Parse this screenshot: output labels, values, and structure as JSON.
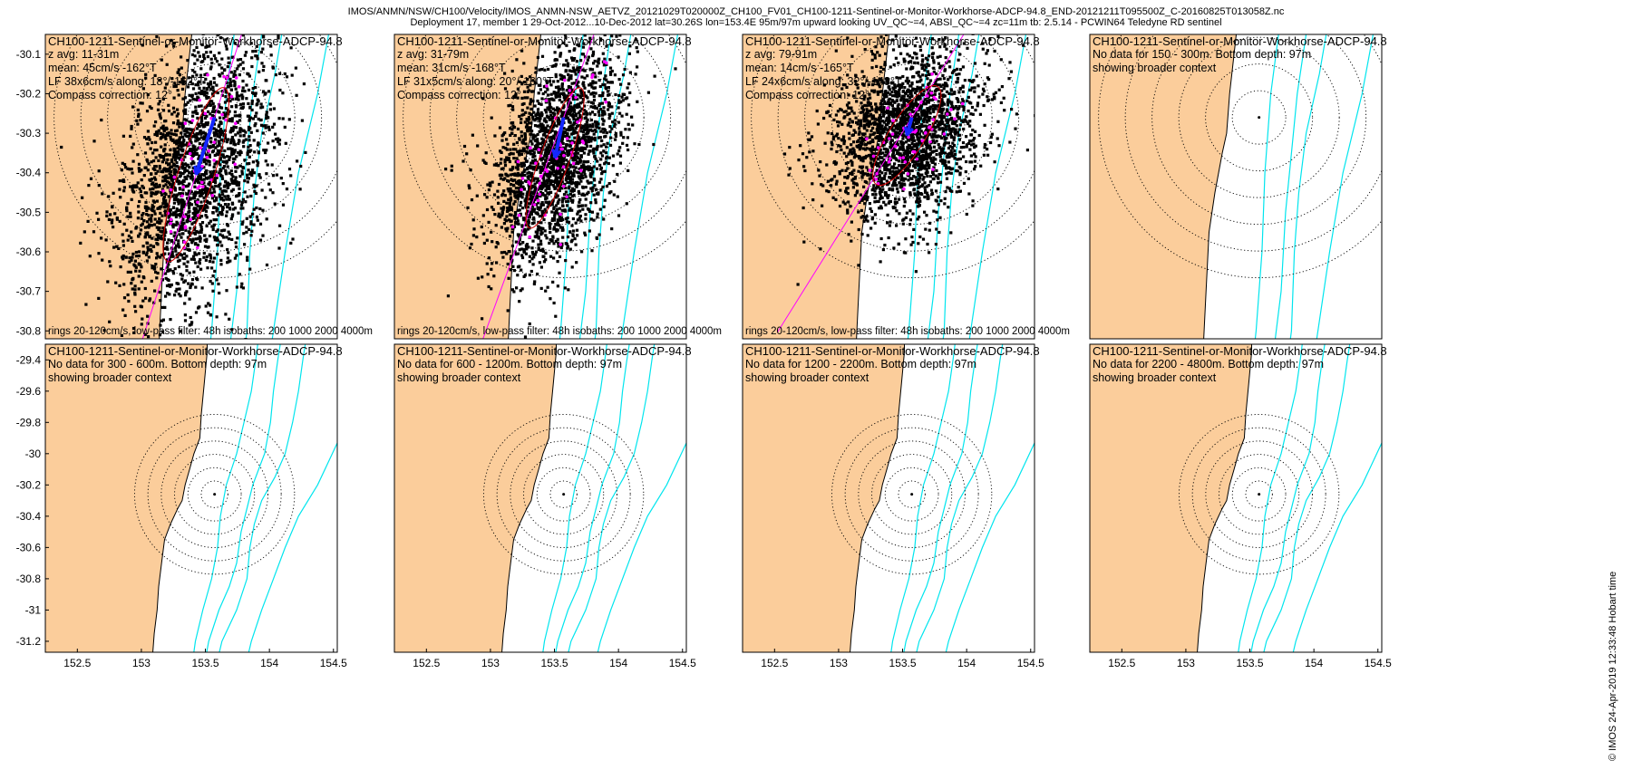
{
  "header": {
    "line1": "IMOS/ANMN/NSW/CH100/Velocity/IMOS_ANMN-NSW_AETVZ_20121029T020000Z_CH100_FV01_CH100-1211-Sentinel-or-Monitor-Workhorse-ADCP-94.8_END-20121211T095500Z_C-20160825T013058Z.nc",
    "line2": "Deployment 17, member 1 29-Oct-2012...10-Dec-2012 lat=30.26S lon=153.4E 95m/97m upward looking UV_QC~=4, ABSI_QC~=4 zc=11m tb: 2.5.14 - PCWIN64 Teledyne RD sentinel"
  },
  "stamp": "© IMOS 24-Apr-2019 12:33:48 Hobart time",
  "colors": {
    "land": "#fbcd9b",
    "isobath": "#00e5ee",
    "points": "#000000",
    "lfpoints": "#ff00ff",
    "arrow": "#1428ff",
    "ellipse": "#d00000",
    "axisline": "#ff00ff"
  },
  "chart_data": [
    {
      "type": "scatter",
      "panel": "top-1",
      "title": "CH100-1211-Sentinel-or-Monitor-Workhorse-ADCP-94.8",
      "lines": [
        "z avg: 11-31m",
        "mean: 45cm/s -162°T",
        "LF 38x6cm/s along: 18°/-162°T",
        "Compass correction: 12°"
      ],
      "footer": "rings 20-120cm/s, low-pass filter: 48h isobaths: 200 1000 2000 4000m",
      "yticks": [
        "-30.1",
        "-30.2",
        "-30.3",
        "-30.4",
        "-30.5",
        "-30.6",
        "-30.7",
        "-30.8"
      ],
      "ylim": [
        -30.82,
        -30.05
      ],
      "rings_cms": [
        20,
        40,
        60,
        80,
        100,
        120
      ],
      "mean_speed_cms": 45,
      "mean_dir_degT": -162,
      "lf_axes_cms": [
        38,
        6
      ],
      "along_deg": 18
    },
    {
      "type": "scatter",
      "panel": "top-2",
      "title": "CH100-1211-Sentinel-or-Monitor-Workhorse-ADCP-94.8",
      "lines": [
        "z avg: 31-79m",
        "mean: 31cm/s -168°T",
        "LF 31x5cm/s along: 20°/-160°T",
        "Compass correction: 12°"
      ],
      "footer": "rings 20-120cm/s, low-pass filter: 48h isobaths: 200 1000 2000 4000m",
      "rings_cms": [
        20,
        40,
        60,
        80,
        100,
        120
      ],
      "mean_speed_cms": 31,
      "mean_dir_degT": -168,
      "lf_axes_cms": [
        31,
        5
      ],
      "along_deg": 20
    },
    {
      "type": "scatter",
      "panel": "top-3",
      "title": "CH100-1211-Sentinel-or-Monitor-Workhorse-ADCP-94.8",
      "lines": [
        "z avg: 79-91m",
        "mean: 14cm/s -165°T",
        "LF 24x6cm/s along: 32°/-148°T",
        "Compass correction: 12°"
      ],
      "footer": "rings 20-120cm/s, low-pass filter: 48h isobaths: 200 1000 2000 4000m",
      "rings_cms": [
        20,
        40,
        60,
        80,
        100,
        120
      ],
      "mean_speed_cms": 14,
      "mean_dir_degT": -165,
      "lf_axes_cms": [
        24,
        6
      ],
      "along_deg": 32
    },
    {
      "type": "scatter",
      "panel": "top-4",
      "title": "CH100-1211-Sentinel-or-Monitor-Workhorse-ADCP-94.8",
      "lines": [
        "No data for 150 - 300m. Bottom depth: 97m",
        "showing broader context"
      ]
    },
    {
      "type": "scatter",
      "panel": "bottom-1",
      "title": "CH100-1211-Sentinel-or-Monitor-Workhorse-ADCP-94.8",
      "lines": [
        "No data for 300 - 600m. Bottom depth: 97m",
        "showing broader context"
      ],
      "yticks": [
        "-29.4",
        "-29.6",
        "-29.8",
        "-30",
        "-30.2",
        "-30.4",
        "-30.6",
        "-30.8",
        "-31",
        "-31.2"
      ],
      "ylim": [
        -31.27,
        -29.3
      ],
      "xticks": [
        "152.5",
        "153",
        "153.5",
        "154",
        "154.5"
      ],
      "xlim": [
        152.25,
        154.53
      ]
    },
    {
      "type": "scatter",
      "panel": "bottom-2",
      "title": "CH100-1211-Sentinel-or-Monitor-Workhorse-ADCP-94.8",
      "lines": [
        "No data for 600 - 1200m. Bottom depth: 97m",
        "showing broader context"
      ]
    },
    {
      "type": "scatter",
      "panel": "bottom-3",
      "title": "CH100-1211-Sentinel-or-Monitor-Workhorse-ADCP-94.8",
      "lines": [
        "No data for 1200 - 2200m. Bottom depth: 97m",
        "showing broader context"
      ]
    },
    {
      "type": "scatter",
      "panel": "bottom-4",
      "title": "CH100-1211-Sentinel-or-Monitor-Workhorse-ADCP-94.8",
      "lines": [
        "No data for 2200 - 4800m. Bottom depth: 97m",
        "showing broader context"
      ]
    }
  ]
}
